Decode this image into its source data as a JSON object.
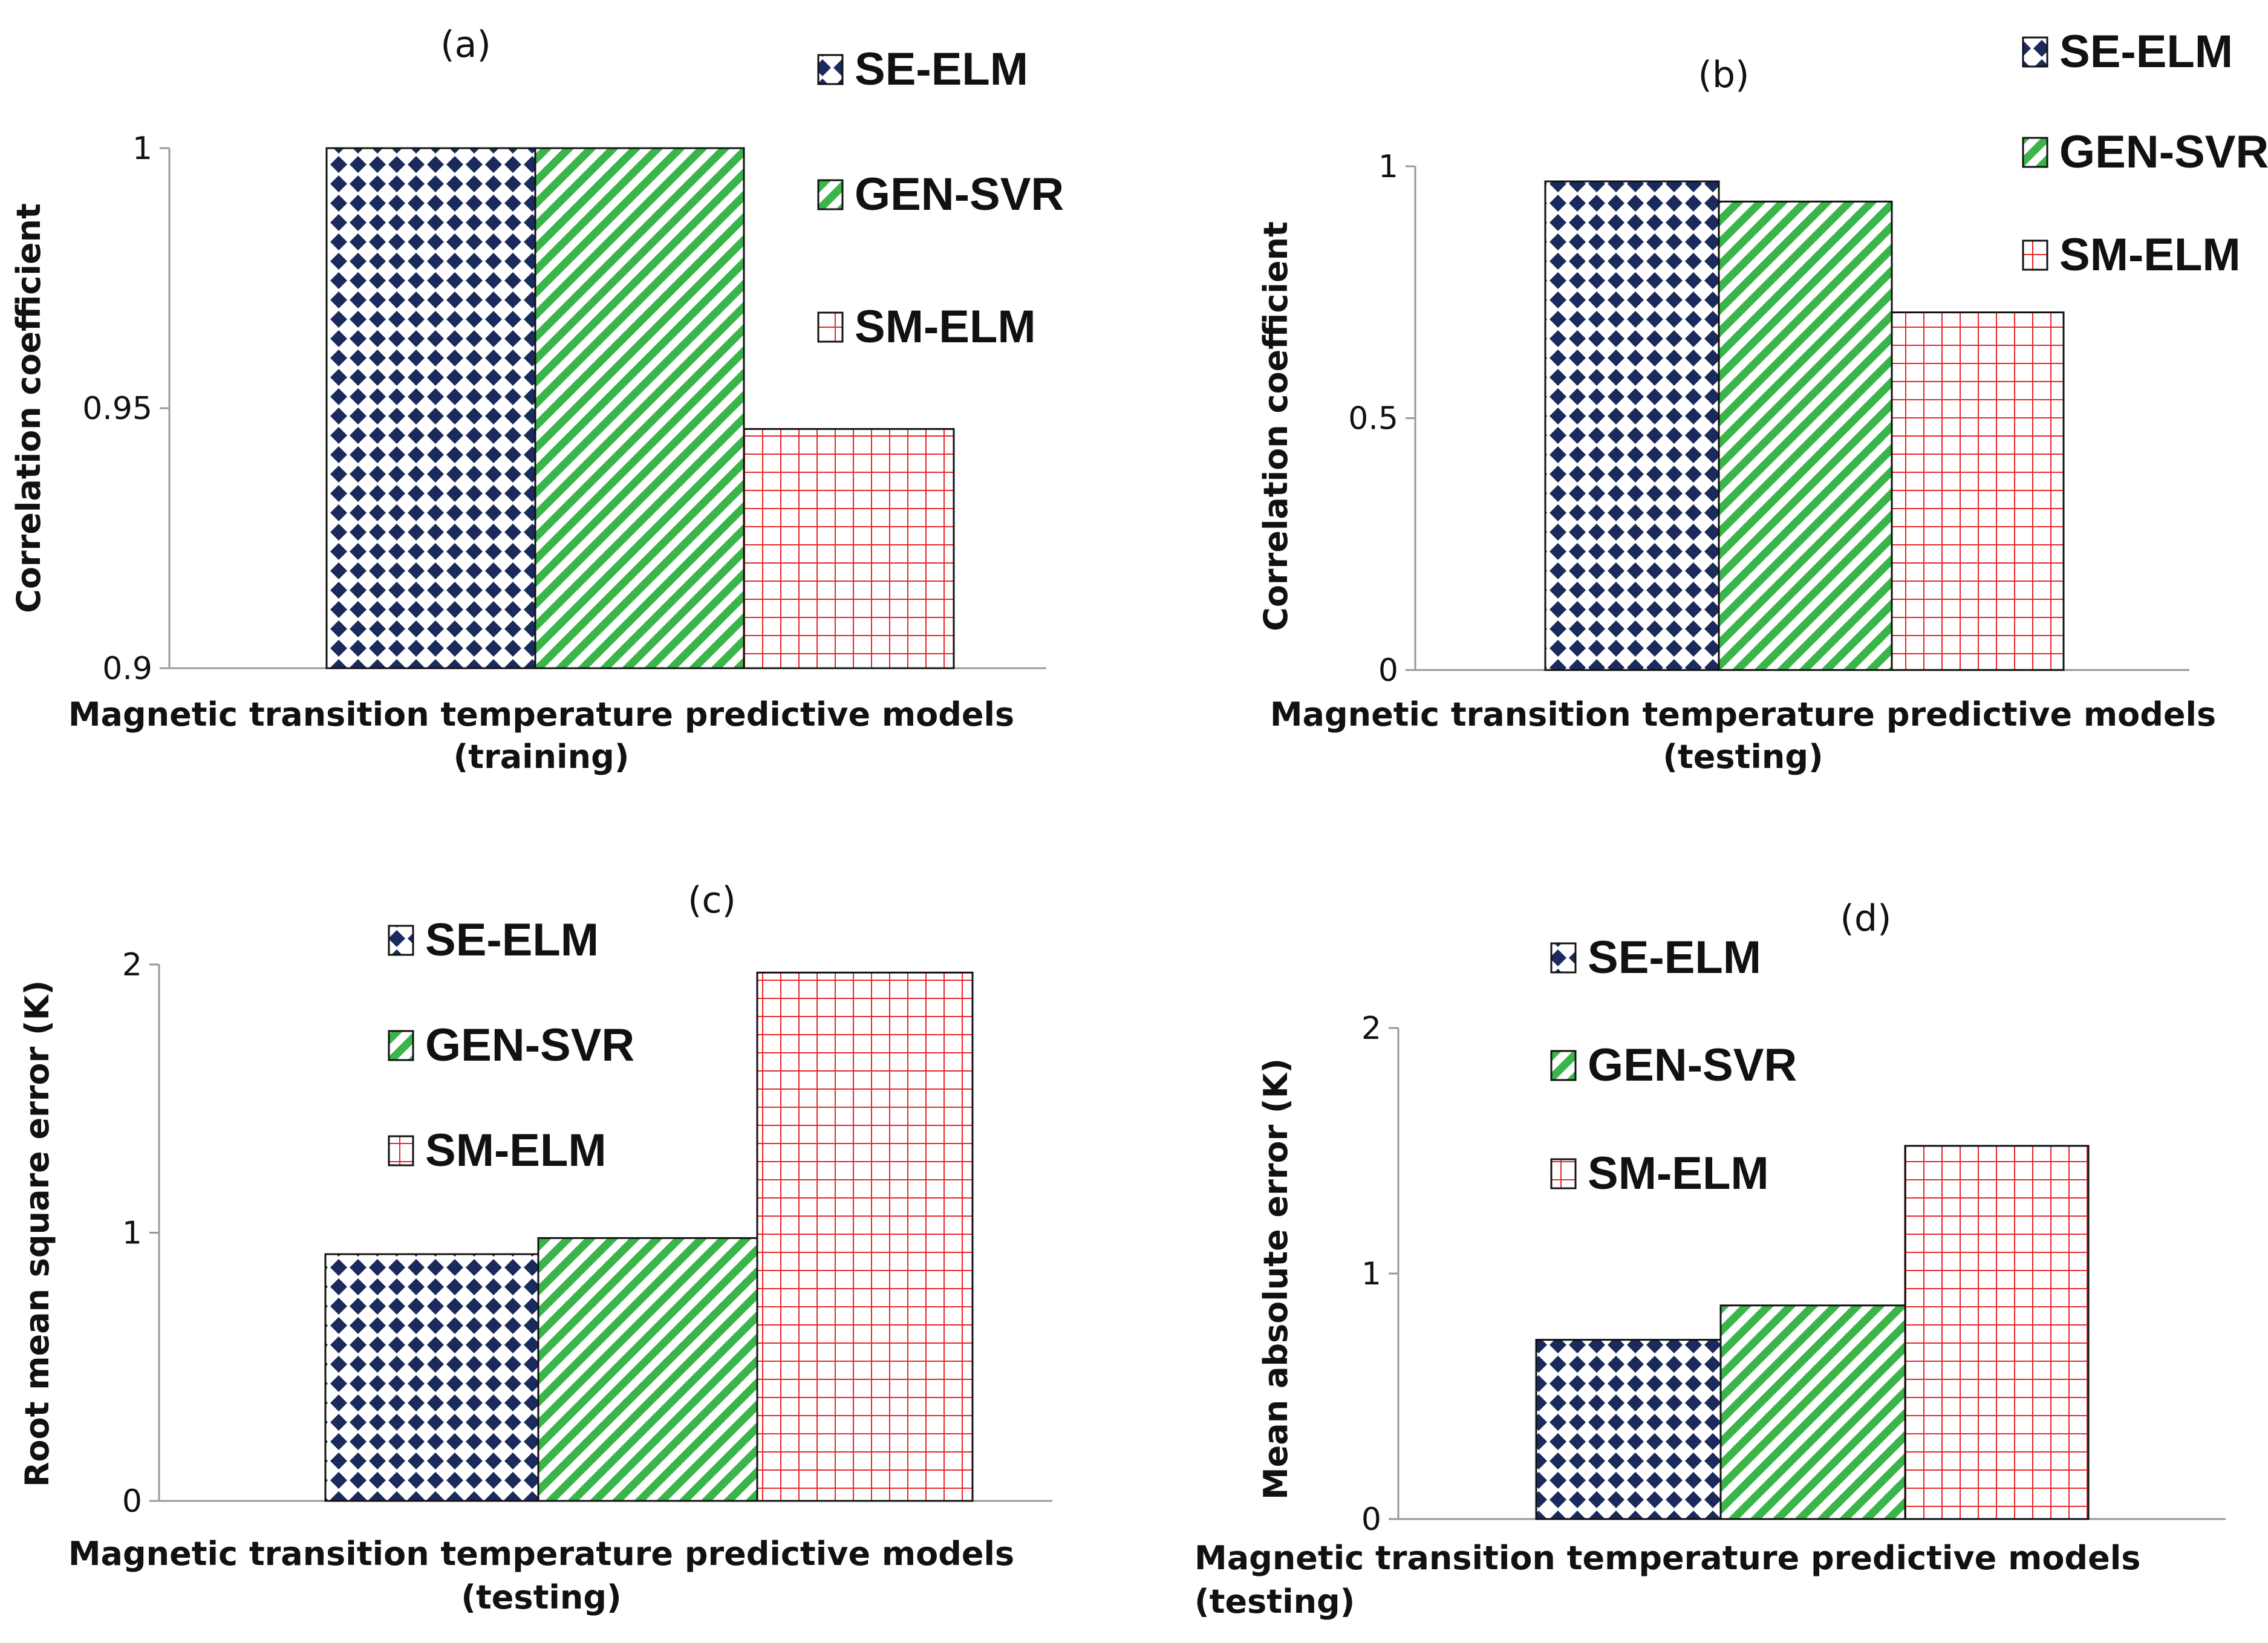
{
  "colors": {
    "se_elm": "#1b2a5c",
    "gen_svr": "#3ab54a",
    "sm_elm": "#e8262a",
    "axis": "#999999",
    "bar_border": "#111111"
  },
  "chart_data": [
    {
      "type": "bar",
      "panel": "(a)",
      "categories": [
        "SE-ELM",
        "GEN-SVR",
        "SM-ELM"
      ],
      "values": [
        1.0,
        1.0,
        0.946
      ],
      "ylim": [
        0.9,
        1.0
      ],
      "yticks": [
        0.9,
        0.95,
        1.0
      ],
      "ytick_labels": [
        "0.9",
        "0.95",
        "1"
      ],
      "ylabel": "Correlation coefficient",
      "xlabel": [
        "Magnetic transition temperature predictive models",
        "(training)"
      ],
      "legend": [
        "SE-ELM",
        "GEN-SVR",
        "SM-ELM"
      ]
    },
    {
      "type": "bar",
      "panel": "(b)",
      "categories": [
        "SE-ELM",
        "GEN-SVR",
        "SM-ELM"
      ],
      "values": [
        0.97,
        0.93,
        0.71
      ],
      "ylim": [
        0,
        1.0
      ],
      "yticks": [
        0,
        0.5,
        1.0
      ],
      "ytick_labels": [
        "0",
        "0.5",
        "1"
      ],
      "ylabel": "Correlation coefficient",
      "xlabel": [
        "Magnetic transition temperature predictive models",
        "(testing)"
      ],
      "legend": [
        "SE-ELM",
        "GEN-SVR",
        "SM-ELM"
      ]
    },
    {
      "type": "bar",
      "panel": "(c)",
      "categories": [
        "SE-ELM",
        "GEN-SVR",
        "SM-ELM"
      ],
      "values": [
        0.92,
        0.98,
        1.97
      ],
      "ylim": [
        0,
        2
      ],
      "yticks": [
        0,
        1,
        2
      ],
      "ytick_labels": [
        "0",
        "1",
        "2"
      ],
      "ylabel": "Root mean square error (K)",
      "xlabel": [
        "Magnetic transition temperature predictive models",
        "(testing)"
      ],
      "legend": [
        "SE-ELM",
        "GEN-SVR",
        "SM-ELM"
      ]
    },
    {
      "type": "bar",
      "panel": "(d)",
      "categories": [
        "SE-ELM",
        "GEN-SVR",
        "SM-ELM"
      ],
      "values": [
        0.73,
        0.87,
        1.52
      ],
      "ylim": [
        0,
        2
      ],
      "yticks": [
        0,
        1,
        2
      ],
      "ytick_labels": [
        "0",
        "1",
        "2"
      ],
      "ylabel": "Mean absolute error (K)",
      "xlabel": [
        "Magnetic transition temperature predictive models",
        "(testing)"
      ],
      "legend": [
        "SE-ELM",
        "GEN-SVR",
        "SM-ELM"
      ]
    }
  ]
}
